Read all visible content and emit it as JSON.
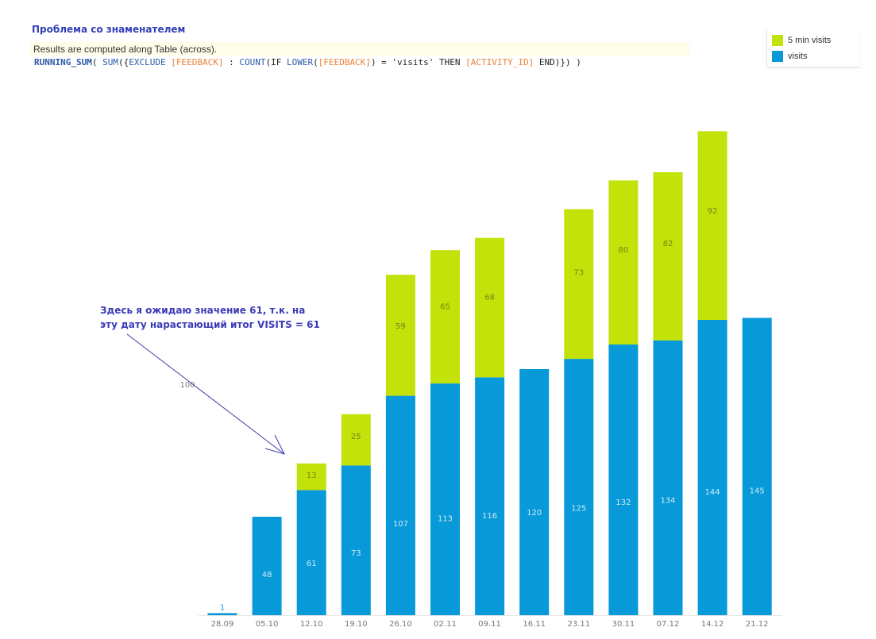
{
  "header": {
    "title": "Проблема со знаменателем",
    "compute_note": "Results are computed along Table (across).",
    "formula_tokens": [
      {
        "text": "RUNNING_SUM",
        "cls": "fn"
      },
      {
        "text": "( ",
        "cls": "str"
      },
      {
        "text": "SUM",
        "cls": "fn2"
      },
      {
        "text": "({",
        "cls": "str"
      },
      {
        "text": "EXCLUDE",
        "cls": "fn2"
      },
      {
        "text": " ",
        "cls": "str"
      },
      {
        "text": "[FEEDBACK]",
        "cls": "fld"
      },
      {
        "text": " : ",
        "cls": "str"
      },
      {
        "text": "COUNT",
        "cls": "fn2"
      },
      {
        "text": "(IF ",
        "cls": "str"
      },
      {
        "text": "LOWER",
        "cls": "fn2"
      },
      {
        "text": "(",
        "cls": "str"
      },
      {
        "text": "[FEEDBACK]",
        "cls": "fld"
      },
      {
        "text": ") = 'visits' THEN ",
        "cls": "str"
      },
      {
        "text": "[ACTIVITY_ID]",
        "cls": "fld"
      },
      {
        "text": " END)}) )",
        "cls": "str"
      }
    ]
  },
  "legend": {
    "items": [
      {
        "label": "5 min visits",
        "color": "#c2e20a"
      },
      {
        "label": "visits",
        "color": "#0899d8"
      }
    ]
  },
  "annotation": {
    "lines": [
      "Здесь я ожидаю значение 61, т.к. на",
      "эту дату нарастающий итог VISITS = 61"
    ],
    "stray_label": "100"
  },
  "chart_data": {
    "type": "bar",
    "stacked": true,
    "categories": [
      "28.09",
      "05.10",
      "12.10",
      "19.10",
      "26.10",
      "02.11",
      "09.11",
      "16.11",
      "23.11",
      "30.11",
      "07.12",
      "14.12",
      "21.12"
    ],
    "series": [
      {
        "name": "visits",
        "color": "#0899d8",
        "values": [
          1,
          48,
          61,
          73,
          107,
          113,
          116,
          120,
          125,
          132,
          134,
          144,
          145
        ]
      },
      {
        "name": "5 min visits",
        "color": "#c2e20a",
        "values": [
          0,
          0,
          13,
          25,
          59,
          65,
          68,
          0,
          73,
          80,
          82,
          92,
          0
        ]
      }
    ],
    "title": "",
    "xlabel": "",
    "ylabel": "",
    "ylim": [
      0,
      280
    ],
    "grid": false,
    "legend_position": "top-right",
    "label_colors": {
      "visits": "#cfe9f7",
      "5 min visits": "#6f8a12",
      "tiny": "#0899d8"
    }
  }
}
